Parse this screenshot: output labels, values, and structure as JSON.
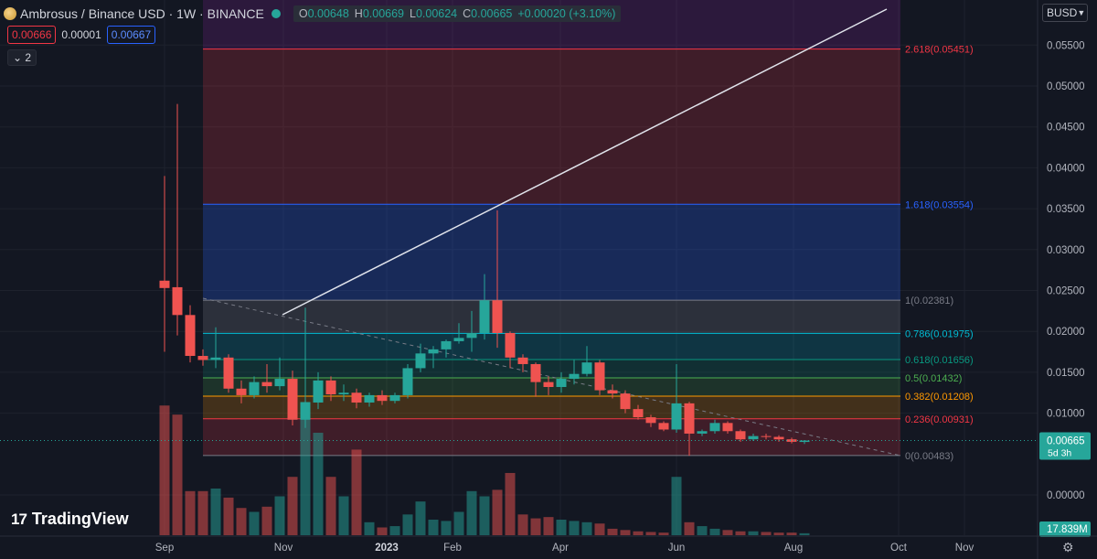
{
  "header": {
    "symbol_title": "Ambrosus / Binance USD · 1W · BINANCE",
    "ohlc": [
      {
        "k": "O",
        "v": "0.00648"
      },
      {
        "k": "H",
        "v": "0.00669"
      },
      {
        "k": "L",
        "v": "0.00624"
      },
      {
        "k": "C",
        "v": "0.00665"
      },
      {
        "k": "",
        "v": "+0.00020 (+3.10%)"
      }
    ],
    "sell_price": "0.00666",
    "spread": "0.00001",
    "buy_price": "0.00667",
    "indicators_collapsed": "2",
    "currency": "BUSD"
  },
  "brand": {
    "logo_text": "TradingView"
  },
  "colors": {
    "bg": "#131722",
    "up": "#26a69a",
    "down": "#ef5350",
    "grid": "#1e222d",
    "axis_text": "#b2b5be"
  },
  "chart_data": {
    "type": "candlestick",
    "symbol": "Ambrosus / Binance USD",
    "interval": "1W",
    "exchange": "BINANCE",
    "y_ticks": [
      "0.05500",
      "0.05000",
      "0.04500",
      "0.04000",
      "0.03500",
      "0.03000",
      "0.02500",
      "0.02000",
      "0.01500",
      "0.01000",
      "0.00000"
    ],
    "x_ticks": [
      "Sep",
      "Nov",
      "2023",
      "Feb",
      "Apr",
      "Jun",
      "Aug",
      "Oct",
      "Nov"
    ],
    "last_price": "0.00665",
    "countdown": "5d 3h",
    "volume_label": "17.839M",
    "fib_levels": [
      {
        "ratio": "0",
        "price": "0.00483",
        "label": "0(0.00483)",
        "color": "#787b86"
      },
      {
        "ratio": "0.236",
        "price": "0.00931",
        "label": "0.236(0.00931)",
        "color": "#f23645"
      },
      {
        "ratio": "0.382",
        "price": "0.01208",
        "label": "0.382(0.01208)",
        "color": "#ff9800"
      },
      {
        "ratio": "0.5",
        "price": "0.01432",
        "label": "0.5(0.01432)",
        "color": "#4caf50"
      },
      {
        "ratio": "0.618",
        "price": "0.01656",
        "label": "0.618(0.01656)",
        "color": "#089981"
      },
      {
        "ratio": "0.786",
        "price": "0.01975",
        "label": "0.786(0.01975)",
        "color": "#00bcd4"
      },
      {
        "ratio": "1",
        "price": "0.02381",
        "label": "1(0.02381)",
        "color": "#787b86"
      },
      {
        "ratio": "1.618",
        "price": "0.03554",
        "label": "1.618(0.03554)",
        "color": "#2962ff"
      },
      {
        "ratio": "2.618",
        "price": "0.05451",
        "label": "2.618(0.05451)",
        "color": "#f23645"
      }
    ],
    "candles": [
      {
        "o": 0.0262,
        "h": 0.039,
        "l": 0.0175,
        "c": 0.0253,
        "v": 1.0
      },
      {
        "o": 0.0254,
        "h": 0.0478,
        "l": 0.0195,
        "c": 0.022,
        "v": 0.93
      },
      {
        "o": 0.022,
        "h": 0.0232,
        "l": 0.0162,
        "c": 0.017,
        "v": 0.34
      },
      {
        "o": 0.017,
        "h": 0.0178,
        "l": 0.0158,
        "c": 0.0165,
        "v": 0.34
      },
      {
        "o": 0.0165,
        "h": 0.0205,
        "l": 0.0155,
        "c": 0.0168,
        "v": 0.36
      },
      {
        "o": 0.0168,
        "h": 0.0172,
        "l": 0.0125,
        "c": 0.013,
        "v": 0.29
      },
      {
        "o": 0.013,
        "h": 0.014,
        "l": 0.0112,
        "c": 0.0122,
        "v": 0.21
      },
      {
        "o": 0.0122,
        "h": 0.0145,
        "l": 0.0118,
        "c": 0.0138,
        "v": 0.18
      },
      {
        "o": 0.0138,
        "h": 0.016,
        "l": 0.0125,
        "c": 0.0133,
        "v": 0.22
      },
      {
        "o": 0.0133,
        "h": 0.0168,
        "l": 0.0128,
        "c": 0.0142,
        "v": 0.3
      },
      {
        "o": 0.0142,
        "h": 0.0152,
        "l": 0.0085,
        "c": 0.0092,
        "v": 0.45
      },
      {
        "o": 0.0092,
        "h": 0.0229,
        "l": 0.0082,
        "c": 0.0113,
        "v": 1.03
      },
      {
        "o": 0.0113,
        "h": 0.015,
        "l": 0.0105,
        "c": 0.014,
        "v": 0.79
      },
      {
        "o": 0.014,
        "h": 0.0145,
        "l": 0.0115,
        "c": 0.0123,
        "v": 0.45
      },
      {
        "o": 0.0123,
        "h": 0.0135,
        "l": 0.0115,
        "c": 0.0125,
        "v": 0.3
      },
      {
        "o": 0.0125,
        "h": 0.013,
        "l": 0.0106,
        "c": 0.0113,
        "v": 0.66
      },
      {
        "o": 0.0113,
        "h": 0.0125,
        "l": 0.0108,
        "c": 0.0122,
        "v": 0.1
      },
      {
        "o": 0.0122,
        "h": 0.0128,
        "l": 0.011,
        "c": 0.0115,
        "v": 0.06
      },
      {
        "o": 0.0115,
        "h": 0.0125,
        "l": 0.0112,
        "c": 0.0122,
        "v": 0.07
      },
      {
        "o": 0.0122,
        "h": 0.016,
        "l": 0.0118,
        "c": 0.0155,
        "v": 0.16
      },
      {
        "o": 0.0155,
        "h": 0.0185,
        "l": 0.015,
        "c": 0.0173,
        "v": 0.26
      },
      {
        "o": 0.0173,
        "h": 0.0182,
        "l": 0.0155,
        "c": 0.0178,
        "v": 0.12
      },
      {
        "o": 0.0178,
        "h": 0.019,
        "l": 0.0168,
        "c": 0.0188,
        "v": 0.11
      },
      {
        "o": 0.0188,
        "h": 0.021,
        "l": 0.0185,
        "c": 0.0192,
        "v": 0.18
      },
      {
        "o": 0.0192,
        "h": 0.0225,
        "l": 0.0175,
        "c": 0.0198,
        "v": 0.34
      },
      {
        "o": 0.0198,
        "h": 0.027,
        "l": 0.019,
        "c": 0.0238,
        "v": 0.3
      },
      {
        "o": 0.0238,
        "h": 0.0348,
        "l": 0.018,
        "c": 0.0198,
        "v": 0.35
      },
      {
        "o": 0.0198,
        "h": 0.02,
        "l": 0.0155,
        "c": 0.0168,
        "v": 0.48
      },
      {
        "o": 0.0168,
        "h": 0.0172,
        "l": 0.015,
        "c": 0.016,
        "v": 0.16
      },
      {
        "o": 0.016,
        "h": 0.0162,
        "l": 0.012,
        "c": 0.0138,
        "v": 0.13
      },
      {
        "o": 0.0138,
        "h": 0.0145,
        "l": 0.0122,
        "c": 0.0132,
        "v": 0.14
      },
      {
        "o": 0.0132,
        "h": 0.015,
        "l": 0.0125,
        "c": 0.0142,
        "v": 0.12
      },
      {
        "o": 0.0142,
        "h": 0.0165,
        "l": 0.0135,
        "c": 0.0148,
        "v": 0.11
      },
      {
        "o": 0.0148,
        "h": 0.0182,
        "l": 0.0145,
        "c": 0.0162,
        "v": 0.1
      },
      {
        "o": 0.0162,
        "h": 0.0165,
        "l": 0.0122,
        "c": 0.0128,
        "v": 0.09
      },
      {
        "o": 0.0128,
        "h": 0.0135,
        "l": 0.0118,
        "c": 0.0124,
        "v": 0.05
      },
      {
        "o": 0.0124,
        "h": 0.0128,
        "l": 0.01,
        "c": 0.0105,
        "v": 0.04
      },
      {
        "o": 0.0105,
        "h": 0.011,
        "l": 0.0092,
        "c": 0.0095,
        "v": 0.03
      },
      {
        "o": 0.0095,
        "h": 0.0098,
        "l": 0.0083,
        "c": 0.0088,
        "v": 0.025
      },
      {
        "o": 0.0088,
        "h": 0.009,
        "l": 0.0078,
        "c": 0.008,
        "v": 0.02
      },
      {
        "o": 0.008,
        "h": 0.016,
        "l": 0.0076,
        "c": 0.0112,
        "v": 0.45
      },
      {
        "o": 0.0112,
        "h": 0.0114,
        "l": 0.0048,
        "c": 0.0075,
        "v": 0.1
      },
      {
        "o": 0.0075,
        "h": 0.008,
        "l": 0.0072,
        "c": 0.0078,
        "v": 0.07
      },
      {
        "o": 0.0078,
        "h": 0.0092,
        "l": 0.0075,
        "c": 0.0088,
        "v": 0.05
      },
      {
        "o": 0.0088,
        "h": 0.009,
        "l": 0.0075,
        "c": 0.0078,
        "v": 0.04
      },
      {
        "o": 0.0078,
        "h": 0.008,
        "l": 0.0065,
        "c": 0.0068,
        "v": 0.03
      },
      {
        "o": 0.0068,
        "h": 0.0075,
        "l": 0.0066,
        "c": 0.0072,
        "v": 0.03
      },
      {
        "o": 0.0072,
        "h": 0.0075,
        "l": 0.0068,
        "c": 0.0071,
        "v": 0.025
      },
      {
        "o": 0.0071,
        "h": 0.0073,
        "l": 0.0065,
        "c": 0.0068,
        "v": 0.02
      },
      {
        "o": 0.0068,
        "h": 0.007,
        "l": 0.0063,
        "c": 0.0065,
        "v": 0.02
      },
      {
        "o": 0.00648,
        "h": 0.00669,
        "l": 0.00624,
        "c": 0.00665,
        "v": 0.015
      }
    ]
  }
}
